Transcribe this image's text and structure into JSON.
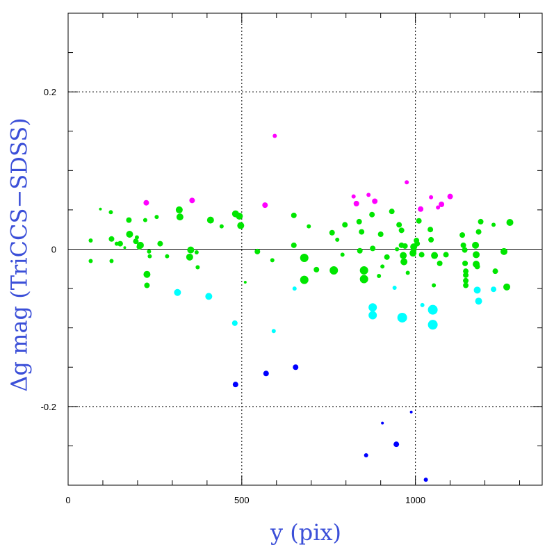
{
  "chart_data": {
    "type": "scatter",
    "xlabel": "y (pix)",
    "ylabel": "Δg mag (TriCCS−SDSS)",
    "xlim": [
      0,
      1365
    ],
    "ylim": [
      -0.3,
      0.3
    ],
    "x_ticks": [
      "0",
      "500",
      "1000"
    ],
    "y_ticks": [
      "-0.2",
      "0",
      "0.2"
    ],
    "grid": "dotted at x=500, x=1000, y=0.2, y=-0.2",
    "zero_line": 0,
    "colors": {
      "green": "#00e600",
      "magenta": "#ff00ff",
      "cyan": "#00ffff",
      "blue": "#0000ff",
      "axis_label": "#3b4fd8"
    },
    "series": [
      {
        "color": "green",
        "points": [
          [
            65,
            0.011,
            3
          ],
          [
            65,
            -0.015,
            3
          ],
          [
            93,
            0.051,
            2
          ],
          [
            123,
            0.047,
            3
          ],
          [
            125,
            0.013,
            4
          ],
          [
            125,
            -0.015,
            3
          ],
          [
            140,
            0.007,
            3
          ],
          [
            150,
            0.007,
            4
          ],
          [
            163,
            0.002,
            2
          ],
          [
            175,
            0.037,
            4
          ],
          [
            177,
            0.019,
            5
          ],
          [
            195,
            0.01,
            4
          ],
          [
            198,
            0.015,
            3
          ],
          [
            205,
            0.003,
            4
          ],
          [
            208,
            0.005,
            5
          ],
          [
            222,
            0.037,
            3
          ],
          [
            227,
            -0.032,
            5
          ],
          [
            227,
            -0.046,
            4
          ],
          [
            233,
            -0.003,
            3
          ],
          [
            235,
            -0.009,
            3
          ],
          [
            255,
            0.041,
            3
          ],
          [
            265,
            0.007,
            4
          ],
          [
            285,
            -0.009,
            3
          ],
          [
            320,
            0.05,
            5
          ],
          [
            322,
            0.041,
            5
          ],
          [
            350,
            -0.01,
            5
          ],
          [
            353,
            -0.001,
            5
          ],
          [
            370,
            -0.004,
            3
          ],
          [
            373,
            -0.023,
            3
          ],
          [
            410,
            0.037,
            5
          ],
          [
            442,
            0.029,
            3
          ],
          [
            482,
            0.045,
            5
          ],
          [
            493,
            0.042,
            5
          ],
          [
            497,
            0.03,
            5
          ],
          [
            510,
            -0.042,
            2
          ],
          [
            545,
            -0.003,
            4
          ],
          [
            588,
            -0.014,
            3
          ],
          [
            650,
            0.043,
            4
          ],
          [
            650,
            0.005,
            4
          ],
          [
            680,
            -0.011,
            6
          ],
          [
            680,
            -0.039,
            6
          ],
          [
            693,
            0.029,
            3
          ],
          [
            715,
            -0.026,
            4
          ],
          [
            760,
            0.021,
            4
          ],
          [
            765,
            -0.027,
            6
          ],
          [
            775,
            0.012,
            3
          ],
          [
            790,
            -0.007,
            3
          ],
          [
            797,
            0.031,
            4
          ],
          [
            838,
            0.035,
            4
          ],
          [
            840,
            -0.002,
            4
          ],
          [
            845,
            0.022,
            4
          ],
          [
            852,
            -0.038,
            6
          ],
          [
            852,
            -0.027,
            6
          ],
          [
            875,
            0.044,
            4
          ],
          [
            877,
            0.001,
            4
          ],
          [
            895,
            -0.034,
            3
          ],
          [
            900,
            0.019,
            4
          ],
          [
            905,
            -0.022,
            3
          ],
          [
            918,
            -0.01,
            4
          ],
          [
            932,
            0.048,
            4
          ],
          [
            947,
            0.0,
            3
          ],
          [
            953,
            0.031,
            4
          ],
          [
            960,
            0.005,
            4
          ],
          [
            960,
            0.024,
            4
          ],
          [
            965,
            -0.008,
            5
          ],
          [
            967,
            -0.016,
            5
          ],
          [
            970,
            0.004,
            4
          ],
          [
            978,
            -0.03,
            3
          ],
          [
            993,
            -0.005,
            5
          ],
          [
            995,
            -0.002,
            4
          ],
          [
            995,
            0.003,
            5
          ],
          [
            1003,
            0.011,
            4
          ],
          [
            1005,
            0.007,
            4
          ],
          [
            1010,
            0.036,
            4
          ],
          [
            1018,
            -0.007,
            4
          ],
          [
            1043,
            0.025,
            4
          ],
          [
            1045,
            0.012,
            4
          ],
          [
            1053,
            -0.046,
            3
          ],
          [
            1055,
            -0.008,
            5
          ],
          [
            1070,
            -0.018,
            4
          ],
          [
            1088,
            -0.007,
            4
          ],
          [
            1135,
            0.018,
            4
          ],
          [
            1138,
            0.005,
            4
          ],
          [
            1142,
            -0.001,
            4
          ],
          [
            1143,
            -0.018,
            4
          ],
          [
            1145,
            -0.028,
            4
          ],
          [
            1145,
            -0.033,
            4
          ],
          [
            1145,
            -0.046,
            4
          ],
          [
            1145,
            -0.04,
            4
          ],
          [
            1173,
            0.005,
            5
          ],
          [
            1175,
            -0.007,
            5
          ],
          [
            1175,
            -0.019,
            5
          ],
          [
            1178,
            -0.022,
            4
          ],
          [
            1182,
            0.022,
            4
          ],
          [
            1188,
            0.035,
            4
          ],
          [
            1225,
            0.031,
            3
          ],
          [
            1230,
            -0.028,
            4
          ],
          [
            1255,
            -0.003,
            5
          ],
          [
            1263,
            -0.048,
            5
          ],
          [
            1272,
            0.034,
            5
          ]
        ]
      },
      {
        "color": "magenta",
        "points": [
          [
            225,
            0.059,
            4
          ],
          [
            357,
            0.062,
            4
          ],
          [
            567,
            0.056,
            4
          ],
          [
            595,
            0.144,
            3
          ],
          [
            822,
            0.067,
            3
          ],
          [
            830,
            0.058,
            4
          ],
          [
            865,
            0.069,
            3
          ],
          [
            883,
            0.061,
            4
          ],
          [
            975,
            0.085,
            3
          ],
          [
            1015,
            0.051,
            4
          ],
          [
            1045,
            0.066,
            3
          ],
          [
            1065,
            0.053,
            3
          ],
          [
            1075,
            0.057,
            4
          ],
          [
            1100,
            0.067,
            4
          ]
        ]
      },
      {
        "color": "cyan",
        "points": [
          [
            315,
            -0.055,
            5
          ],
          [
            405,
            -0.06,
            5
          ],
          [
            480,
            -0.094,
            4
          ],
          [
            592,
            -0.104,
            3
          ],
          [
            652,
            -0.05,
            3
          ],
          [
            877,
            -0.074,
            6
          ],
          [
            877,
            -0.084,
            6
          ],
          [
            940,
            -0.049,
            3
          ],
          [
            962,
            -0.087,
            7
          ],
          [
            1020,
            -0.071,
            3
          ],
          [
            1050,
            -0.077,
            7
          ],
          [
            1050,
            -0.096,
            7
          ],
          [
            1178,
            -0.052,
            5
          ],
          [
            1182,
            -0.066,
            5
          ],
          [
            1225,
            -0.051,
            4
          ]
        ]
      },
      {
        "color": "blue",
        "points": [
          [
            482,
            -0.172,
            4
          ],
          [
            570,
            -0.158,
            4
          ],
          [
            655,
            -0.15,
            4
          ],
          [
            858,
            -0.262,
            3
          ],
          [
            905,
            -0.221,
            2
          ],
          [
            945,
            -0.248,
            4
          ],
          [
            988,
            -0.207,
            2
          ],
          [
            1030,
            -0.293,
            3
          ]
        ]
      }
    ]
  }
}
